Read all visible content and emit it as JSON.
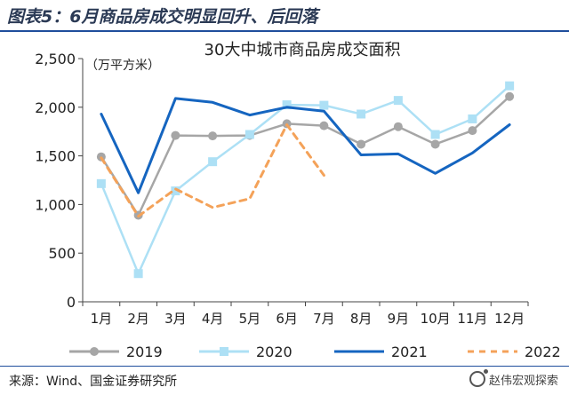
{
  "figure_title": "图表5：6月商品房成交明显回升、后回落",
  "source_note": "来源：Wind、国金证券研究所",
  "watermark": "赵伟宏观探索",
  "chart_data": {
    "type": "line",
    "title": "30大中城市商品房成交面积",
    "ylabel": "（万平方米）",
    "xlabel": "",
    "categories": [
      "1月",
      "2月",
      "3月",
      "4月",
      "5月",
      "6月",
      "7月",
      "8月",
      "9月",
      "10月",
      "11月",
      "12月"
    ],
    "ylim": [
      0,
      2500
    ],
    "yticks": [
      0,
      500,
      1000,
      1500,
      2000,
      2500
    ],
    "ytick_labels": [
      "0",
      "500",
      "1,000",
      "1,500",
      "2,000",
      "2,500"
    ],
    "grid": false,
    "legend_position": "bottom",
    "series": [
      {
        "name": "2019",
        "color": "#a6a6a6",
        "style": "solid-circle",
        "values": [
          1490,
          890,
          1710,
          1705,
          1710,
          1830,
          1810,
          1620,
          1800,
          1620,
          1760,
          2110
        ]
      },
      {
        "name": "2020",
        "color": "#ade0f5",
        "style": "solid-square",
        "values": [
          1215,
          290,
          1140,
          1440,
          1720,
          2025,
          2020,
          1930,
          2070,
          1720,
          1880,
          2220
        ]
      },
      {
        "name": "2021",
        "color": "#1565c0",
        "style": "solid",
        "values": [
          1930,
          1120,
          2090,
          2050,
          1920,
          2000,
          1960,
          1510,
          1520,
          1320,
          1530,
          1820
        ]
      },
      {
        "name": "2022",
        "color": "#f4a259",
        "style": "dashed",
        "values": [
          1480,
          880,
          1160,
          970,
          1060,
          1820,
          1300,
          null,
          null,
          null,
          null,
          null
        ]
      }
    ]
  }
}
